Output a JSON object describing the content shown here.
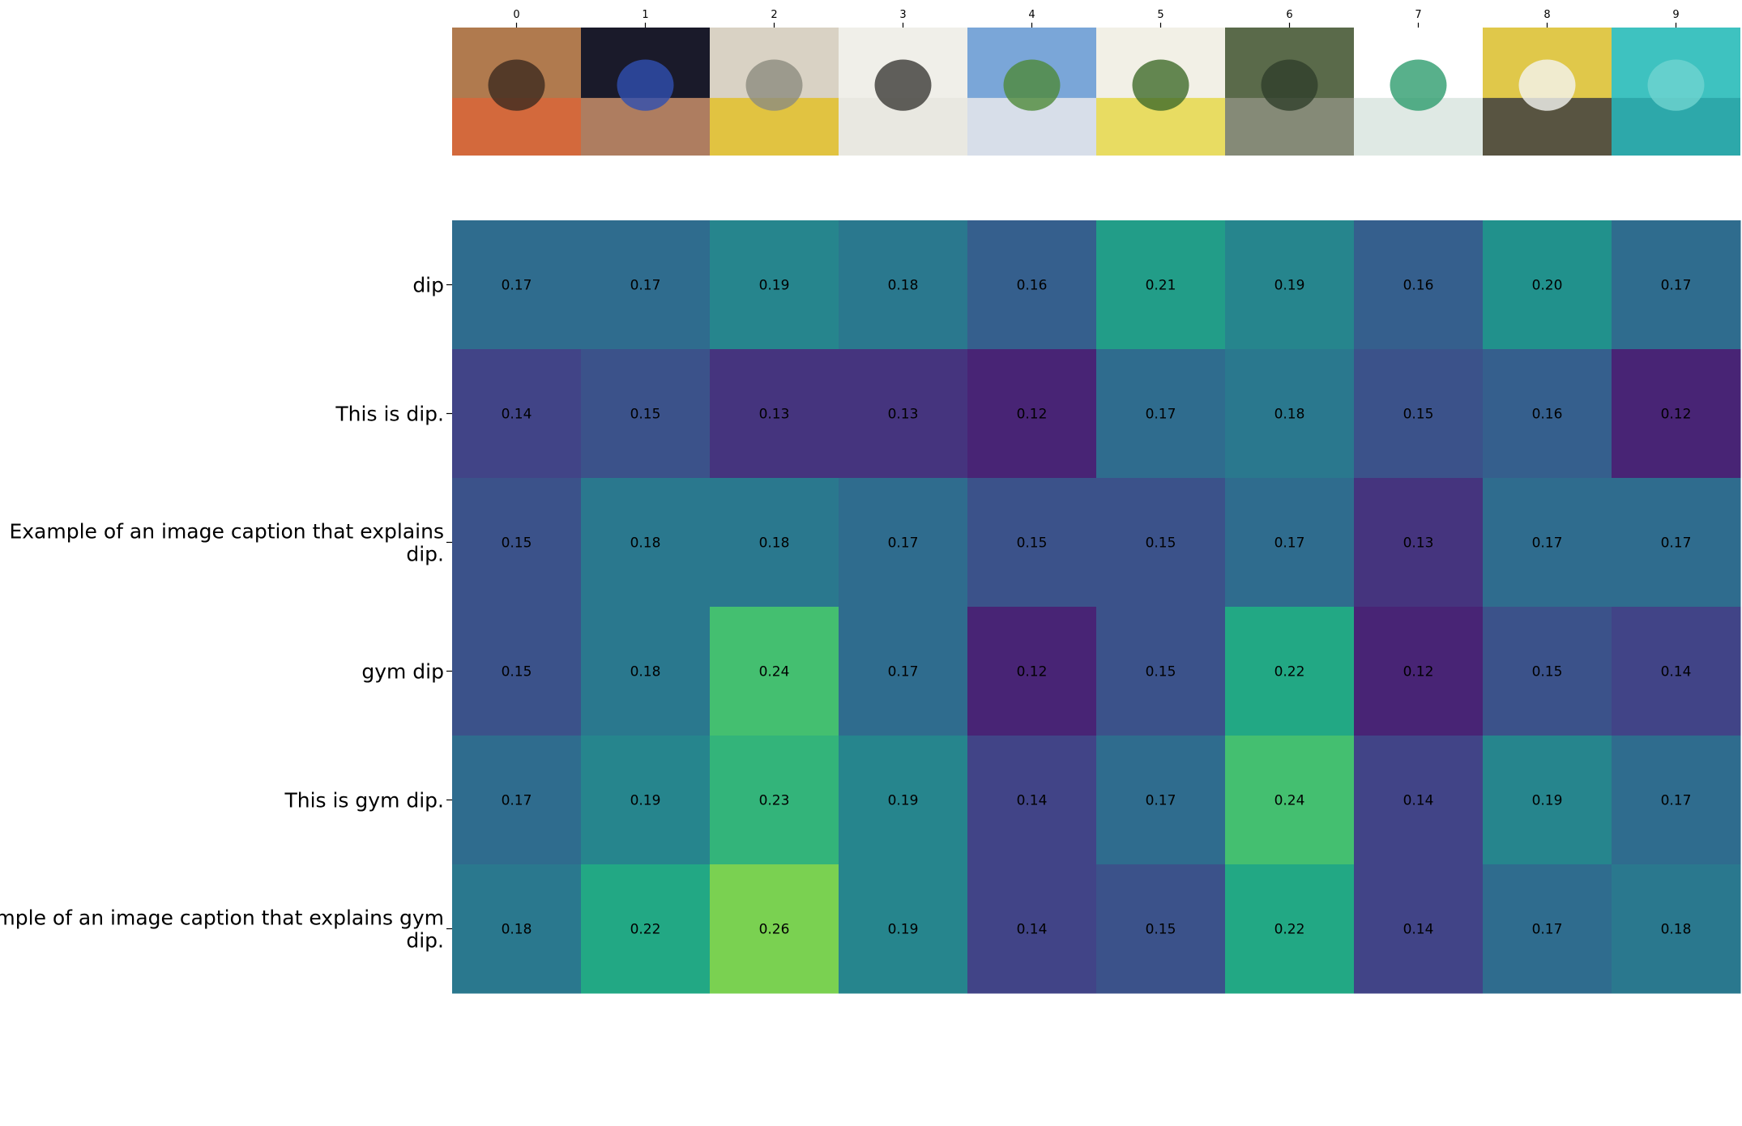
{
  "chart_data": {
    "type": "heatmap",
    "x_tick_labels": [
      "0",
      "1",
      "2",
      "3",
      "4",
      "5",
      "6",
      "7",
      "8",
      "9"
    ],
    "row_labels": [
      "dip",
      "This is dip.",
      "Example of an image caption that explains dip.",
      "gym dip",
      "This is gym dip.",
      "Example of an image caption that explains gym dip."
    ],
    "values": [
      [
        0.17,
        0.17,
        0.19,
        0.18,
        0.16,
        0.21,
        0.19,
        0.16,
        0.2,
        0.17
      ],
      [
        0.14,
        0.15,
        0.13,
        0.13,
        0.12,
        0.17,
        0.18,
        0.15,
        0.16,
        0.12
      ],
      [
        0.15,
        0.18,
        0.18,
        0.17,
        0.15,
        0.15,
        0.17,
        0.13,
        0.17,
        0.17
      ],
      [
        0.15,
        0.18,
        0.24,
        0.17,
        0.12,
        0.15,
        0.22,
        0.12,
        0.15,
        0.14
      ],
      [
        0.17,
        0.19,
        0.23,
        0.19,
        0.14,
        0.17,
        0.24,
        0.14,
        0.19,
        0.17
      ],
      [
        0.18,
        0.22,
        0.26,
        0.19,
        0.14,
        0.15,
        0.22,
        0.14,
        0.17,
        0.18
      ]
    ],
    "colormap": "viridis",
    "color_range": [
      0.1,
      0.3
    ],
    "column_images": [
      "masked-luchador-wrestler",
      "wrestlers-in-ring",
      "gym-with-yellow-equipment",
      "sailors-doing-pushups",
      "stadium-grandstand",
      "yogurt-dip-with-olive-oil",
      "man-on-outdoor-dip-bars",
      "handheld-electronic-device",
      "rice-ball-in-bowl",
      "swimmers-in-sea"
    ]
  },
  "colors": {
    "cell_text": "#000000",
    "axis_text": "#000000",
    "tick": "#000000",
    "background": "#ffffff"
  }
}
